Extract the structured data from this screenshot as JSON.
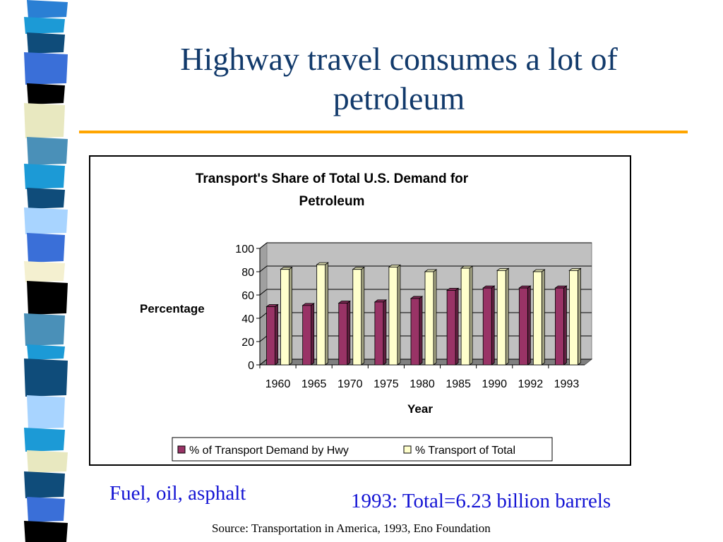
{
  "slide": {
    "title": "Highway travel consumes a lot of petroleum",
    "note_left": "Fuel, oil, asphalt",
    "note_right": "1993: Total=6.23 billion barrels",
    "source": "Source: Transportation in America, 1993, Eno Foundation"
  },
  "colors": {
    "title": "#123a6b",
    "rule": "#ffa500",
    "note": "#1414d4",
    "stripe": [
      "#0f4c7a",
      "#2a7fd4",
      "#7fb7f2",
      "#000000",
      "#e8e8c0",
      "#4a90b8",
      "#1c9ad6",
      "#f4f0d0",
      "#3a6fd8",
      "#a8d4ff"
    ]
  },
  "chart_data": {
    "type": "bar",
    "title": "Transport's Share of Total U.S. Demand for Petroleum",
    "xlabel": "Year",
    "ylabel": "Percentage",
    "ylim": [
      0,
      100
    ],
    "yticks": [
      0,
      20,
      40,
      60,
      80,
      100
    ],
    "grid": true,
    "three_d": true,
    "legend_position": "bottom",
    "categories": [
      "1960",
      "1965",
      "1970",
      "1975",
      "1980",
      "1985",
      "1990",
      "1992",
      "1993"
    ],
    "series": [
      {
        "name": "% of Transport Demand by Hwy",
        "color": "#993366",
        "values": [
          50,
          51,
          53,
          54,
          57,
          64,
          66,
          66,
          66
        ]
      },
      {
        "name": "% Transport of Total",
        "color": "#ffffcc",
        "values": [
          82,
          86,
          82,
          84,
          80,
          83,
          81,
          80,
          81
        ]
      }
    ]
  }
}
